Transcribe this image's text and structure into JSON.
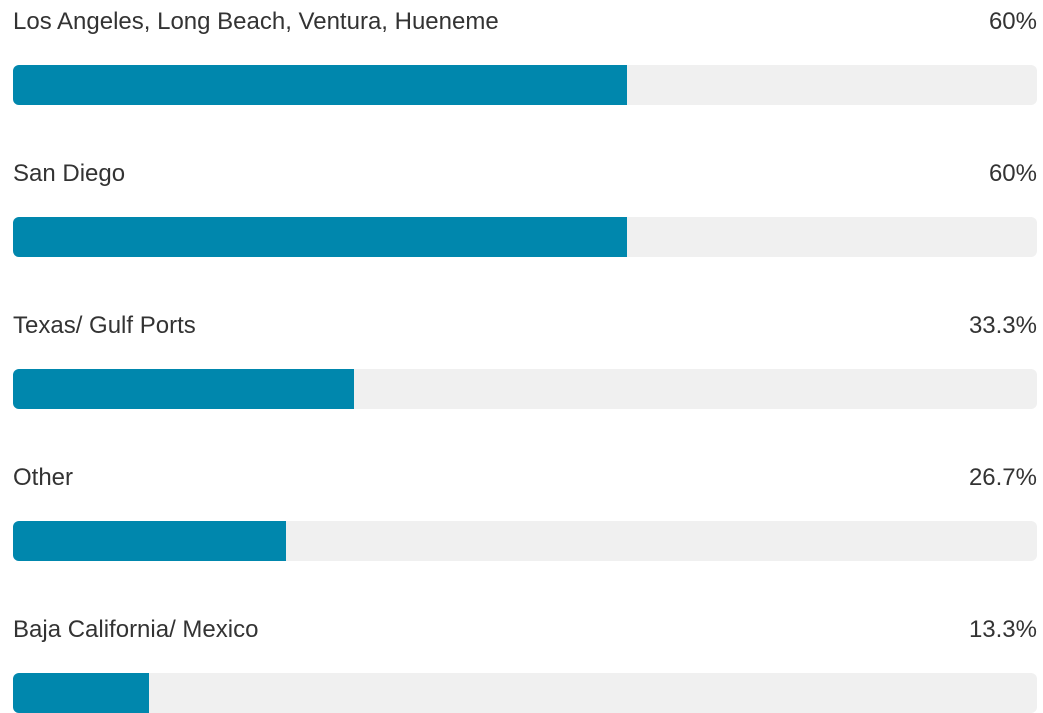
{
  "chart_data": {
    "type": "bar",
    "orientation": "horizontal",
    "xlim": [
      0,
      100
    ],
    "categories": [
      "Los Angeles, Long Beach, Ventura, Hueneme",
      "San Diego",
      "Texas/ Gulf Ports",
      "Other",
      "Baja California/ Mexico"
    ],
    "values": [
      60,
      60,
      33.3,
      26.7,
      13.3
    ],
    "value_labels": [
      "60%",
      "60%",
      "33.3%",
      "26.7%",
      "13.3%"
    ],
    "colors": {
      "bar": "#0087ad",
      "track": "#f0f0f0",
      "text": "#333333"
    }
  }
}
